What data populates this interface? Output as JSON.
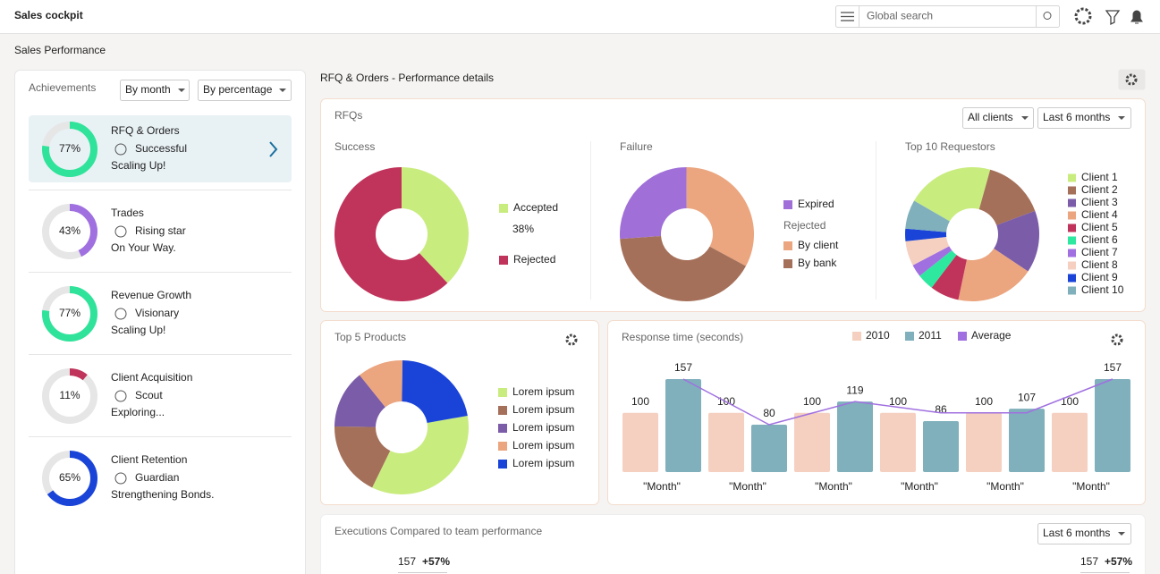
{
  "header": {
    "title": "Sales cockpit",
    "search_placeholder": "Global search"
  },
  "page_title": "Sales Performance",
  "achievements": {
    "label": "Achievements",
    "filters": [
      "By month",
      "By percentage"
    ],
    "items": [
      {
        "value": 77,
        "value_label": "77%",
        "title": "RFQ & Orders",
        "badge": "Successful",
        "note": "Scaling Up!",
        "color": "#2fe39a"
      },
      {
        "value": 43,
        "value_label": "43%",
        "title": "Trades",
        "badge": "Rising star",
        "note": "On Your Way.",
        "color": "#a070e0"
      },
      {
        "value": 77,
        "value_label": "77%",
        "title": "Revenue Growth",
        "badge": "Visionary",
        "note": "Scaling Up!",
        "color": "#2fe39a"
      },
      {
        "value": 11,
        "value_label": "11%",
        "title": "Client Acquisition",
        "badge": "Scout",
        "note": "Exploring...",
        "color": "#c0335a"
      },
      {
        "value": 65,
        "value_label": "65%",
        "title": "Client Retention",
        "badge": "Guardian",
        "note": "Strengthening Bonds.",
        "color": "#1a44d8"
      }
    ]
  },
  "details": {
    "title": "RFQ & Orders - Performance details",
    "rfqs": {
      "label": "RFQs",
      "filters": [
        "All clients",
        "Last 6 months"
      ],
      "success": {
        "type": "pie",
        "title": "Success",
        "categories": [
          "Accepted",
          "Rejected"
        ],
        "values": [
          38,
          62
        ],
        "value_labels": [
          "38%",
          null
        ],
        "colors": [
          "#c9ec7f",
          "#c0335a"
        ]
      },
      "failure": {
        "type": "pie",
        "title": "Failure",
        "group_label": "Rejected",
        "categories": [
          "Expired",
          "By client",
          "By bank"
        ],
        "values": [
          26,
          33,
          41
        ],
        "colors": [
          "#a070d8",
          "#eba57f",
          "#a5705a"
        ]
      },
      "requestors": {
        "type": "pie",
        "title": "Top 10 Requestors",
        "categories": [
          "Client 1",
          "Client 2",
          "Client 3",
          "Client 4",
          "Client 5",
          "Client 6",
          "Client 7",
          "Client 8",
          "Client 9",
          "Client 10"
        ],
        "values": [
          21,
          15,
          15,
          19,
          7,
          4,
          3,
          6,
          3,
          7
        ],
        "colors": [
          "#c9ec7f",
          "#a5705a",
          "#7a5ca8",
          "#eba57f",
          "#c0335a",
          "#2ee8a0",
          "#a070e0",
          "#f5d0c0",
          "#1a44d8",
          "#7fb0bc"
        ]
      }
    },
    "products": {
      "type": "pie",
      "title": "Top 5 Products",
      "categories": [
        "Lorem ipsum",
        "Lorem ipsum",
        "Lorem ipsum",
        "Lorem ipsum",
        "Lorem ipsum"
      ],
      "values": [
        35,
        18,
        14,
        11,
        22
      ],
      "colors": [
        "#c9ec7f",
        "#a5705a",
        "#7a5ca8",
        "#eba57f",
        "#1a44d8"
      ]
    },
    "response_time": {
      "type": "bar",
      "title": "Response time (seconds)",
      "categories": [
        "\"Month\"",
        "\"Month\"",
        "\"Month\"",
        "\"Month\"",
        "\"Month\"",
        "\"Month\""
      ],
      "ylim": [
        0,
        160
      ],
      "series": [
        {
          "name": "2010",
          "color": "#f5d0c0",
          "values": [
            100,
            100,
            100,
            100,
            100,
            100
          ]
        },
        {
          "name": "2011",
          "color": "#7fb0bc",
          "values": [
            157,
            80,
            119,
            86,
            107,
            157
          ]
        },
        {
          "name": "Average",
          "color": "#a070e0",
          "values": [
            157,
            80,
            119,
            100,
            100,
            157
          ]
        }
      ]
    },
    "executions": {
      "title": "Executions Compared to team performance",
      "filter": "Last 6 months",
      "values": [
        157,
        157
      ],
      "changes": [
        "+57%",
        "+57%"
      ]
    }
  }
}
